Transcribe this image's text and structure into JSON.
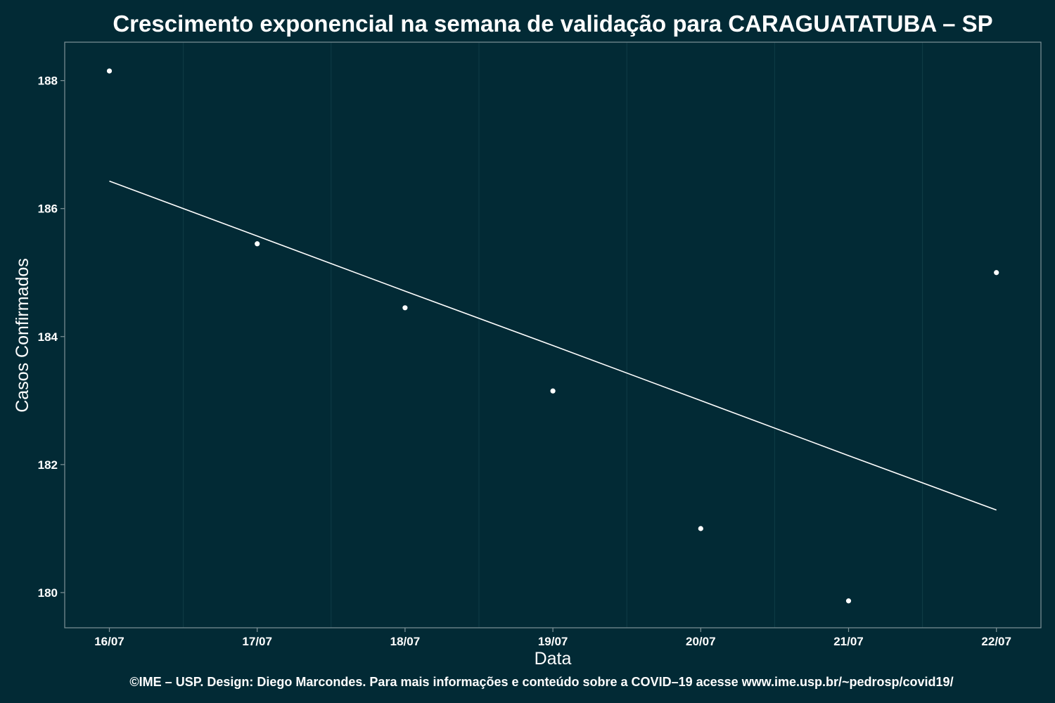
{
  "colors": {
    "background": "#022A35",
    "panel_border": "#7F9297",
    "grid_minor": "#0F3C47",
    "text": "#FFFFFF",
    "points": "#FFFFFF",
    "trend_line": "#FFFFFF"
  },
  "chart_data": {
    "type": "scatter",
    "title": "Crescimento exponencial na semana de validação para CARAGUATATUBA – SP",
    "xlabel": "Data",
    "ylabel": "Casos Confirmados",
    "x_categories": [
      "16/07",
      "17/07",
      "18/07",
      "19/07",
      "20/07",
      "21/07",
      "22/07"
    ],
    "y_ticks": [
      180,
      182,
      184,
      186,
      188
    ],
    "ylim": [
      179.45,
      188.6
    ],
    "grid": "vertical minor lines only",
    "series": [
      {
        "type": "scatter",
        "values": [
          188.15,
          185.45,
          184.45,
          183.15,
          181.0,
          179.87,
          185.0
        ]
      },
      {
        "type": "line",
        "values": [
          186.43,
          185.57,
          184.71,
          183.86,
          183.0,
          182.14,
          181.29
        ]
      }
    ]
  },
  "caption": "©IME – USP. Design: Diego Marcondes. Para mais informações e conteúdo sobre a COVID–19 acesse www.ime.usp.br/~pedrosp/covid19/"
}
